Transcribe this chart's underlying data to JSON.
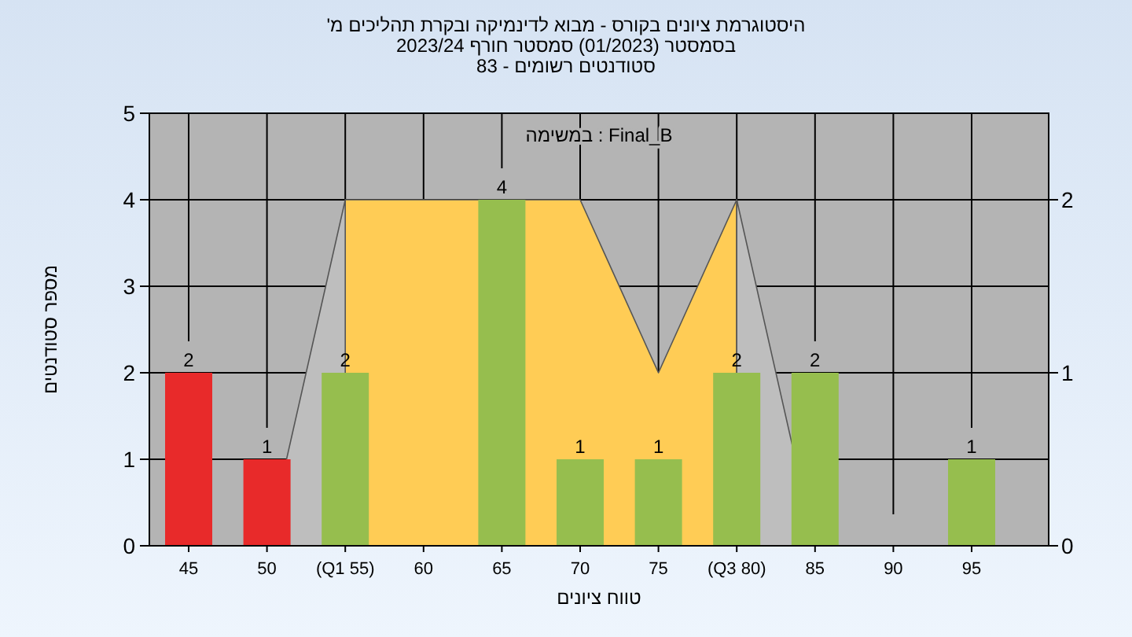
{
  "chart_data": {
    "type": "bar",
    "title": "היסטוגרמת ציונים בקורס - מבוא לדינמיקה ובקרת תהליכים מ'",
    "subtitle": "בסמסטר  (01/2023)  סמסטר חורף  2023/24\nסטודנטים רשומים - 83",
    "xlabel": "טווח ציונים",
    "ylabel": "מספר סטודנטים",
    "categories": [
      "45",
      "50",
      "(Q1 55)",
      "60",
      "65",
      "70",
      "75",
      "(Q3 80)",
      "85",
      "90",
      "95"
    ],
    "series": [
      {
        "type": "area",
        "axis": "y2",
        "color": "#ffcc55",
        "values": [
          null,
          null,
          2,
          2,
          2,
          2,
          1,
          2,
          null,
          null,
          null
        ]
      },
      {
        "type": "area",
        "axis": "y2",
        "color": "#bebebe",
        "values": [
          null,
          0,
          2,
          null,
          null,
          null,
          null,
          null,
          null,
          null,
          null
        ]
      },
      {
        "type": "area",
        "axis": "y2",
        "color": "#bebebe",
        "values": [
          null,
          null,
          null,
          null,
          null,
          null,
          null,
          2,
          0,
          null,
          null
        ]
      },
      {
        "values": [
          2,
          1,
          2,
          0,
          4,
          1,
          1,
          2,
          2,
          0,
          1
        ],
        "colors": [
          "#e82a2a",
          "#e82a2a",
          "#96be4e",
          "#96be4e",
          "#96be4e",
          "#96be4e",
          "#96be4e",
          "#96be4e",
          "#96be4e",
          "#96be4e",
          "#96be4e"
        ],
        "value_labels": [
          "2",
          "1",
          "2",
          null,
          "4",
          "1",
          "1",
          "2",
          "2",
          null,
          "1"
        ]
      }
    ],
    "ylim": [
      0,
      5
    ],
    "yticks": [
      0,
      1,
      2,
      3,
      4,
      5
    ],
    "y2lim": [
      0,
      2.5
    ],
    "y2ticks": [
      0,
      1,
      2
    ],
    "grid": true,
    "annotations": [
      "במשימה : Final_B"
    ]
  }
}
